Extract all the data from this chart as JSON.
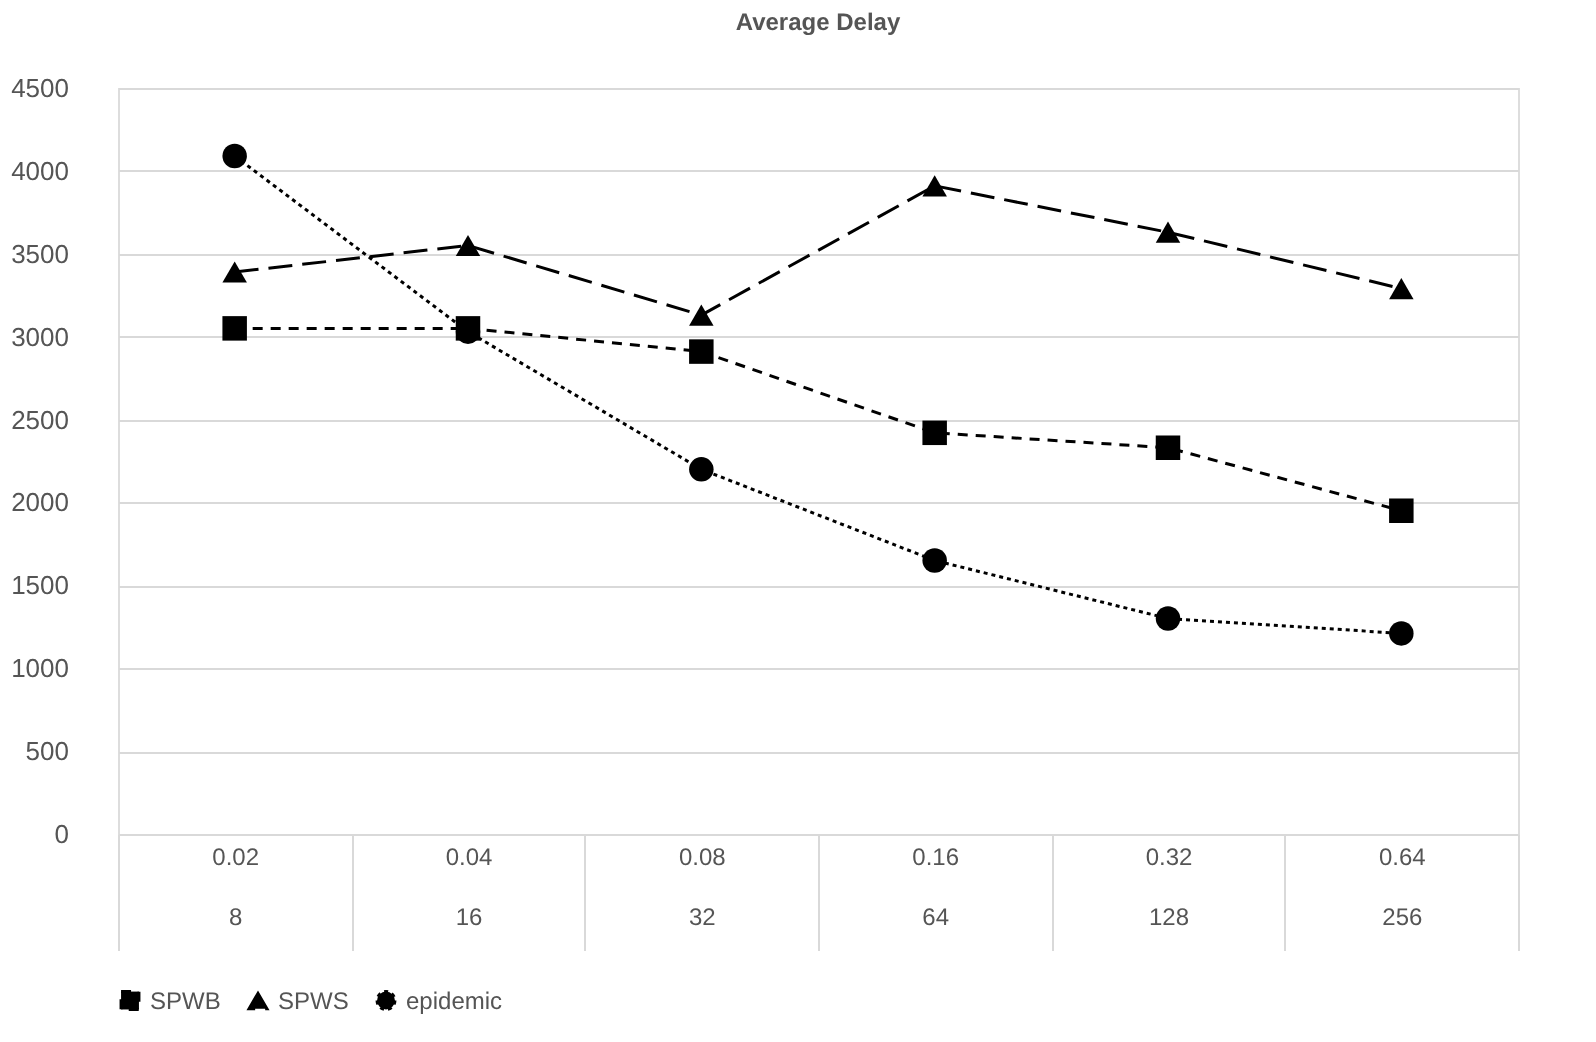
{
  "chart_data": {
    "type": "line",
    "title": "Average Delay",
    "categories": [
      "0.02\n8",
      "0.04\n16",
      "0.08\n32",
      "0.16\n64",
      "0.32\n128",
      "0.64\n256"
    ],
    "series": [
      {
        "name": "SPWB",
        "color": "#000000",
        "marker": "square",
        "line_style": "dashed",
        "values": [
          3050,
          3050,
          2910,
          2420,
          2330,
          1950
        ]
      },
      {
        "name": "SPWS",
        "color": "#000000",
        "marker": "triangle",
        "line_style": "longdash",
        "values": [
          3390,
          3550,
          3130,
          3910,
          3630,
          3290
        ]
      },
      {
        "name": "epidemic",
        "color": "#000000",
        "marker": "circle",
        "line_style": "dotted",
        "values": [
          4090,
          3030,
          2200,
          1650,
          1300,
          1210
        ]
      }
    ],
    "ylim": [
      0,
      4500
    ],
    "yticks": [
      0,
      500,
      1000,
      1500,
      2000,
      2500,
      3000,
      3500,
      4000,
      4500
    ],
    "grid": "y",
    "legend": "bottom"
  }
}
